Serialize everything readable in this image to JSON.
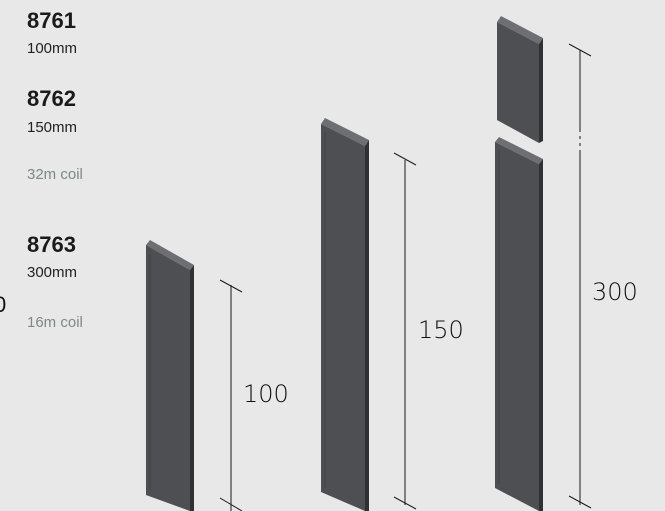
{
  "products": [
    {
      "code": "8761",
      "size": "100mm"
    },
    {
      "code": "8762",
      "size": "150mm"
    },
    {
      "code": "8763",
      "size": "300mm"
    }
  ],
  "coils": {
    "short": "32m coil",
    "long": "16m coil"
  },
  "dimensions": {
    "d100": "100",
    "d150": "150",
    "d300": "300"
  },
  "edge_fragment": "0",
  "colors": {
    "strip": "#4d4f52",
    "strip_dark": "#2f3133",
    "strip_light": "#6d6f72",
    "background": "#e8e8e9"
  }
}
